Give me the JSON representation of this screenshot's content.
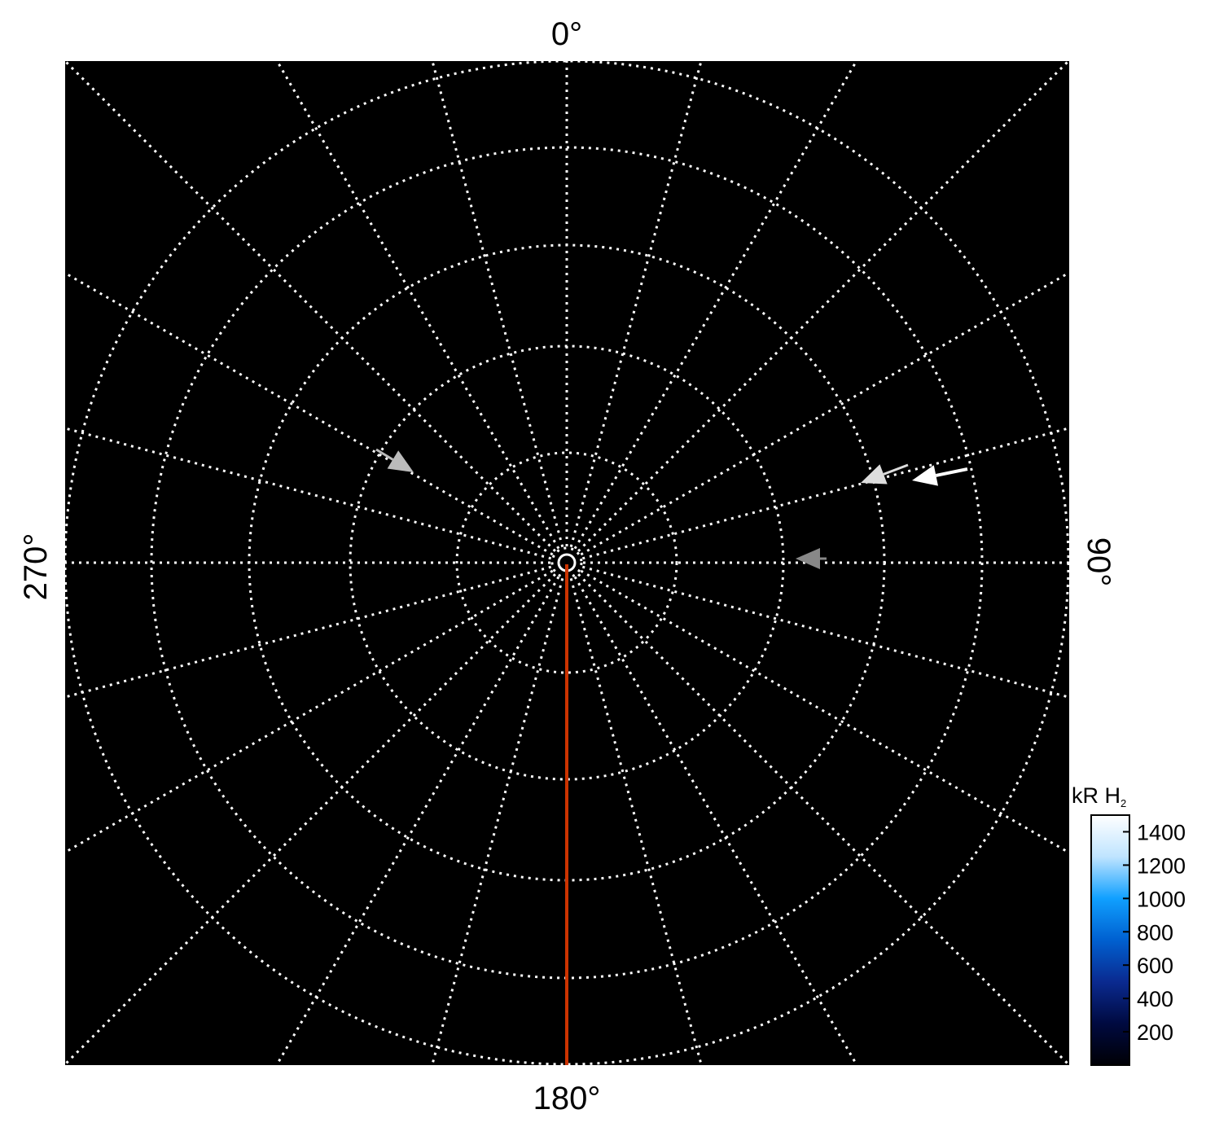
{
  "chart_data": {
    "type": "polar",
    "background": "#000000",
    "grid": true,
    "grid_color": "#ffffff",
    "angle_labels": [
      {
        "angle": 0,
        "text": "0°"
      },
      {
        "angle": 90,
        "text": "90°"
      },
      {
        "angle": 180,
        "text": "180°"
      },
      {
        "angle": 270,
        "text": "270°"
      }
    ],
    "meridian_step_deg": 15,
    "reference_line": {
      "angle": 180,
      "color": "#cc3300"
    },
    "arrows": [
      {
        "color": "#bbbbbb",
        "direction": "inward"
      },
      {
        "color": "#dddddd",
        "direction": "inward"
      },
      {
        "color": "#ffffff",
        "direction": "inward"
      },
      {
        "color": "#888888",
        "direction": "inward"
      }
    ],
    "colorbar": {
      "title": "kR H",
      "title_subscript": "2",
      "range": [
        0,
        1500
      ],
      "ticks": [
        1400,
        1200,
        1000,
        800,
        600,
        400,
        200
      ],
      "colormap": [
        "#000005",
        "#000a40",
        "#0a2a90",
        "#0060d0",
        "#10a0ff",
        "#bfe4ff",
        "#ffffff"
      ]
    }
  }
}
